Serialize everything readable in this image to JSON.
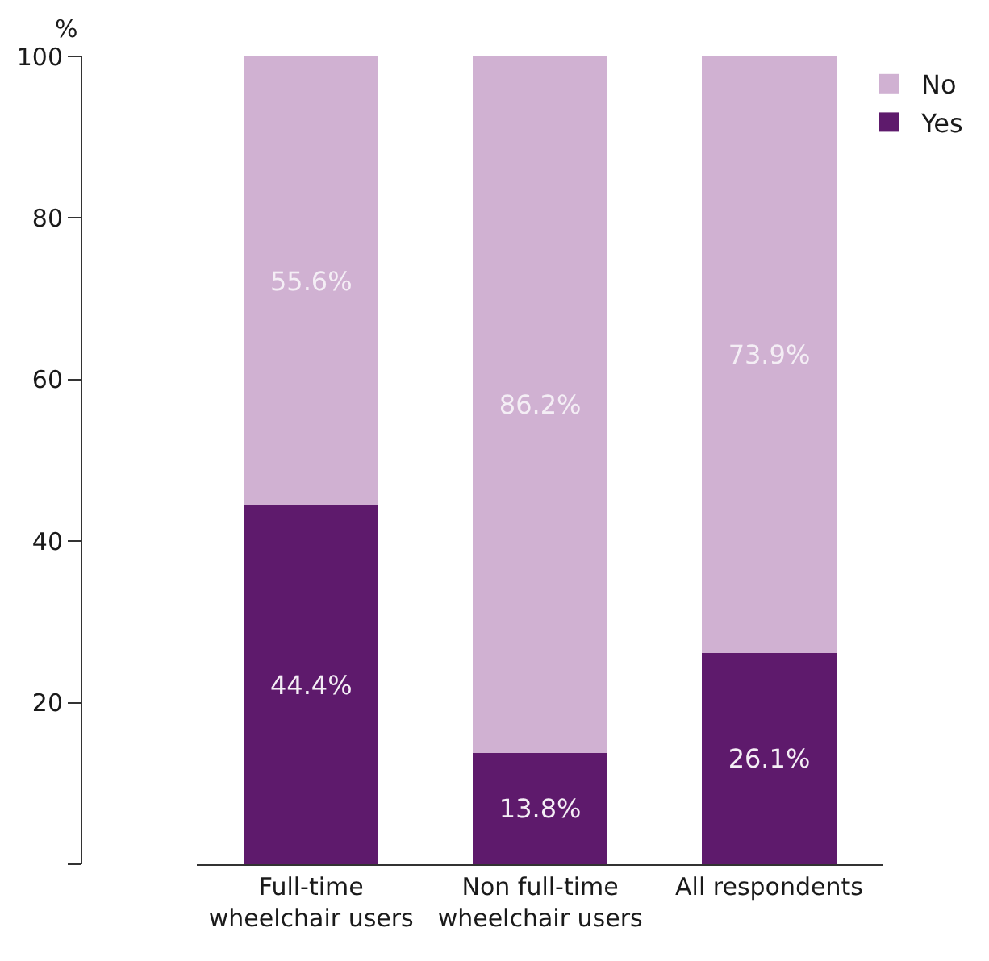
{
  "chart_data": {
    "type": "bar",
    "stacked": true,
    "ylabel": "%",
    "categories": [
      "Full-time wheelchair users",
      "Non full-time wheelchair users",
      "All respondents"
    ],
    "series": [
      {
        "name": "Yes",
        "color": "#5e1a6c",
        "values": [
          44.4,
          13.8,
          26.1
        ],
        "value_labels": [
          "44.4%",
          "13.8%",
          "26.1%"
        ]
      },
      {
        "name": "No",
        "color": "#d0b1d2",
        "values": [
          55.6,
          86.2,
          73.9
        ],
        "value_labels": [
          "55.6%",
          "86.2%",
          "73.9%"
        ]
      }
    ],
    "ylim": [
      0,
      100
    ],
    "yticks": [
      {
        "value": 0,
        "label": null
      },
      20,
      40,
      60,
      80,
      100
    ],
    "grid": false,
    "legend": "top right"
  }
}
